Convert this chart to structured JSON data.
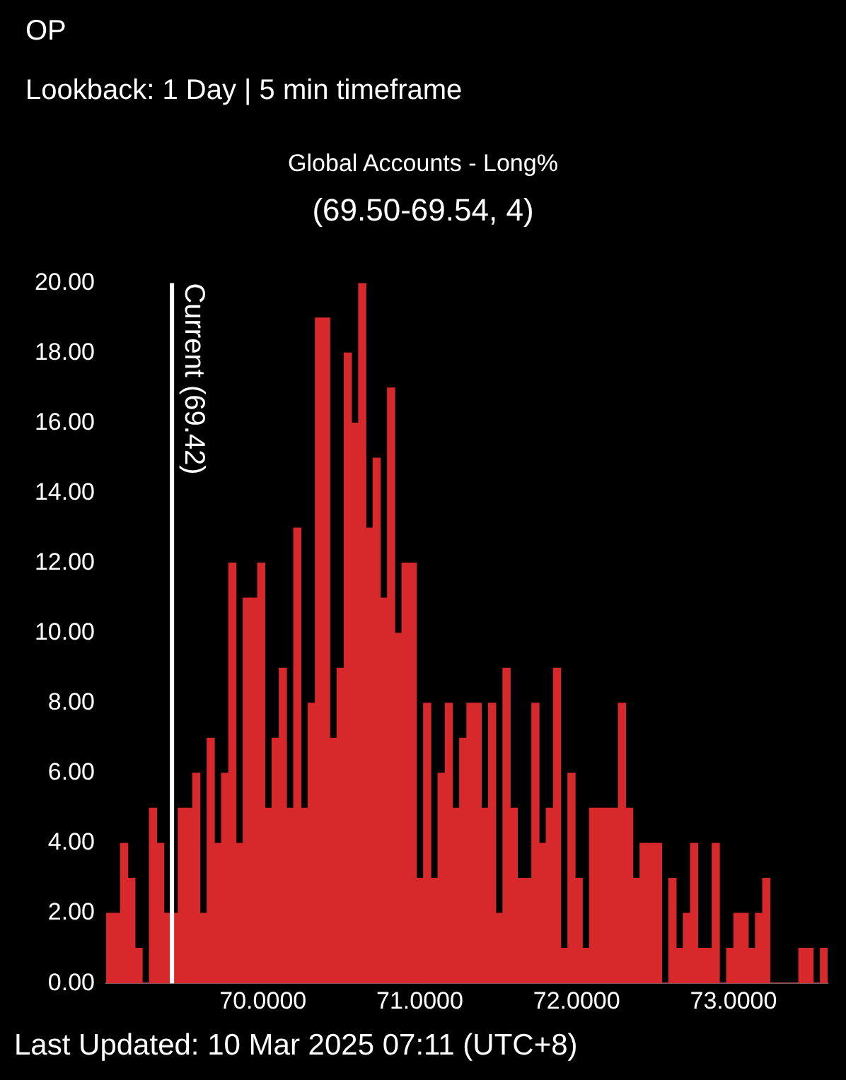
{
  "chart_data": {
    "type": "histogram",
    "title": "Global Accounts - Long%",
    "subtitle": "(69.50-69.54, 4)",
    "annotations": [
      "OP",
      "Lookback: 1 Day | 5 min timeframe",
      "Last Updated: 10 Mar 2025 07:11 (UTC+8)"
    ],
    "bins": [
      69.0,
      69.046,
      69.092,
      69.138,
      69.184,
      69.23,
      69.276,
      69.322,
      69.368,
      69.414,
      69.46,
      69.506,
      69.552,
      69.598,
      69.644,
      69.69,
      69.736,
      69.782,
      69.828,
      69.874,
      69.92,
      69.966,
      70.012,
      70.058,
      70.104,
      70.15,
      70.196,
      70.242,
      70.288,
      70.334,
      70.38,
      70.426,
      70.472,
      70.518,
      70.564,
      70.61,
      70.656,
      70.702,
      70.748,
      70.794,
      70.84,
      70.886,
      70.932,
      70.978,
      71.024,
      71.07,
      71.116,
      71.162,
      71.208,
      71.254,
      71.3,
      71.346,
      71.392,
      71.438,
      71.484,
      71.53,
      71.576,
      71.622,
      71.668,
      71.714,
      71.76,
      71.806,
      71.852,
      71.898,
      71.944,
      71.99,
      72.036,
      72.082,
      72.128,
      72.174,
      72.22,
      72.266,
      72.312,
      72.358,
      72.404,
      72.45,
      72.496,
      72.542,
      72.588,
      72.634,
      72.68,
      72.726,
      72.772,
      72.818,
      72.864,
      72.91,
      72.956,
      73.002,
      73.048,
      73.094,
      73.14,
      73.186,
      73.232,
      73.278,
      73.324,
      73.37,
      73.416,
      73.462,
      73.508,
      73.554,
      73.6
    ],
    "values": [
      2,
      2,
      4,
      3,
      1,
      0,
      5,
      4,
      2,
      2,
      5,
      5,
      6,
      2,
      7,
      4,
      6,
      12,
      4,
      11,
      11,
      12,
      5,
      7,
      9,
      5,
      13,
      5,
      8,
      19,
      19,
      7,
      9,
      18,
      16,
      20,
      13,
      15,
      11,
      17,
      10,
      12,
      12,
      3,
      8,
      3,
      6,
      8,
      5,
      7,
      8,
      8,
      5,
      8,
      2,
      9,
      5,
      3,
      3,
      8,
      4,
      5,
      9,
      1,
      6,
      3,
      1,
      5,
      5,
      5,
      5,
      8,
      5,
      3,
      4,
      4,
      4,
      0,
      3,
      1,
      2,
      4,
      1,
      1,
      4,
      0,
      1,
      2,
      2,
      1,
      2,
      3,
      0,
      0,
      0,
      0,
      1,
      1,
      0,
      1
    ],
    "color": "#d7282b",
    "xticks": [
      {
        "value": 70,
        "label": "70.0000"
      },
      {
        "value": 71,
        "label": "71.0000"
      },
      {
        "value": 72,
        "label": "72.0000"
      },
      {
        "value": 73,
        "label": "73.0000"
      }
    ],
    "xlim": [
      69.0,
      73.6
    ],
    "ylim": [
      0,
      20
    ],
    "yticks": [
      {
        "value": 0,
        "label": "0.00"
      },
      {
        "value": 2,
        "label": "2.00"
      },
      {
        "value": 4,
        "label": "4.00"
      },
      {
        "value": 6,
        "label": "6.00"
      },
      {
        "value": 8,
        "label": "8.00"
      },
      {
        "value": 10,
        "label": "10.00"
      },
      {
        "value": 12,
        "label": "12.00"
      },
      {
        "value": 14,
        "label": "14.00"
      },
      {
        "value": 16,
        "label": "16.00"
      },
      {
        "value": 18,
        "label": "18.00"
      },
      {
        "value": 20,
        "label": "20.00"
      }
    ],
    "ref_lines": [
      {
        "axis": "x",
        "value": 69.42,
        "label": "Current (69.42)",
        "color": "#ffffff"
      }
    ],
    "grid": false,
    "legend": false
  }
}
